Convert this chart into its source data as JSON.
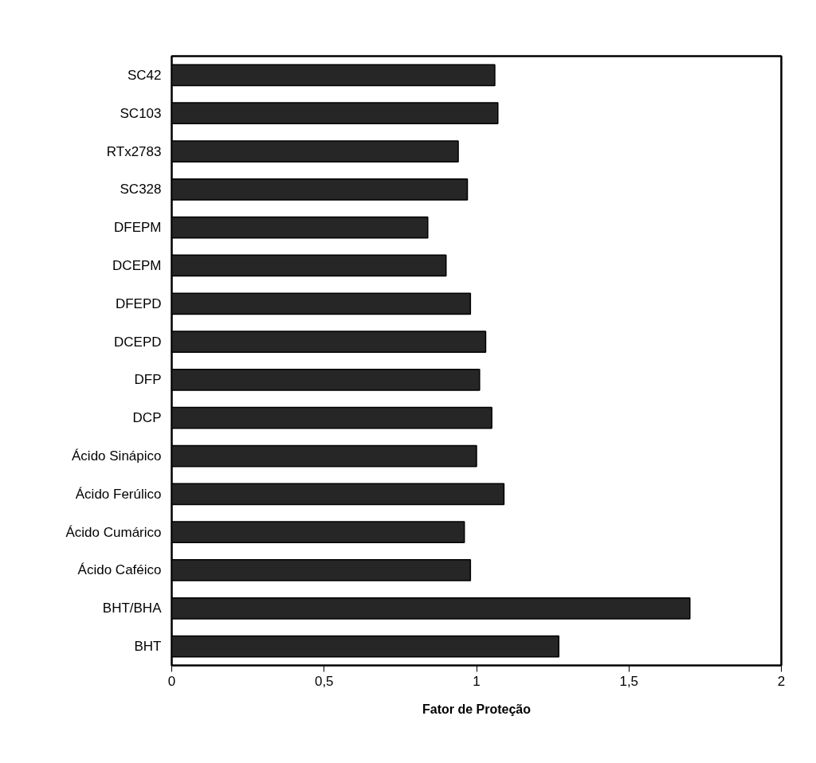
{
  "chart_data": {
    "type": "bar",
    "orientation": "horizontal",
    "xlabel": "Fator de Proteção",
    "categories": [
      "SC42",
      "SC103",
      "RTx2783",
      "SC328",
      "DFEPM",
      "DCEPM",
      "DFEPD",
      "DCEPD",
      "DFP",
      "DCP",
      "Ácido Sinápico",
      "Ácido Ferúlico",
      "Ácido Cumárico",
      "Ácido Caféico",
      "BHT/BHA",
      "BHT"
    ],
    "values": [
      1.06,
      1.07,
      0.94,
      0.97,
      0.84,
      0.9,
      0.98,
      1.03,
      1.01,
      1.05,
      1.0,
      1.09,
      0.96,
      0.98,
      1.7,
      1.27
    ],
    "color": "#262626",
    "xlim": [
      0,
      2
    ],
    "xticks": [
      0,
      {
        "value": 0.5,
        "label": "0,5"
      },
      1,
      {
        "value": 1.5,
        "label": "1,5"
      },
      2
    ],
    "grid": false
  }
}
